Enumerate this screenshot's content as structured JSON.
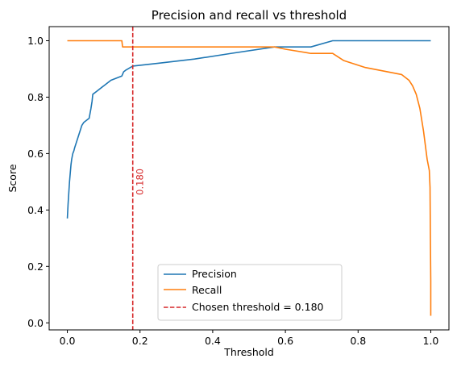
{
  "chart_data": {
    "type": "line",
    "title": "Precision and recall vs threshold",
    "xlabel": "Threshold",
    "ylabel": "Score",
    "xlim": [
      -0.05,
      1.05
    ],
    "ylim": [
      -0.025,
      1.05
    ],
    "xticks": [
      0.0,
      0.2,
      0.4,
      0.6,
      0.8,
      1.0
    ],
    "xtick_labels": [
      "0.0",
      "0.2",
      "0.4",
      "0.6",
      "0.8",
      "1.0"
    ],
    "yticks": [
      0.0,
      0.2,
      0.4,
      0.6,
      0.8,
      1.0
    ],
    "ytick_labels": [
      "0.0",
      "0.2",
      "0.4",
      "0.6",
      "0.8",
      "1.0"
    ],
    "grid": false,
    "legend_position": "bottom-center",
    "series": [
      {
        "name": "Precision",
        "color": "#1f77b4",
        "x": [
          0.0,
          0.002,
          0.004,
          0.006,
          0.008,
          0.01,
          0.012,
          0.015,
          0.018,
          0.02,
          0.025,
          0.03,
          0.035,
          0.04,
          0.045,
          0.05,
          0.06,
          0.065,
          0.068,
          0.07,
          0.08,
          0.1,
          0.12,
          0.14,
          0.15,
          0.155,
          0.16,
          0.18,
          0.25,
          0.35,
          0.45,
          0.57,
          0.6,
          0.67,
          0.73,
          0.8,
          0.9,
          1.0
        ],
        "y": [
          0.37,
          0.42,
          0.46,
          0.5,
          0.53,
          0.56,
          0.58,
          0.6,
          0.61,
          0.62,
          0.64,
          0.66,
          0.68,
          0.7,
          0.71,
          0.715,
          0.725,
          0.76,
          0.785,
          0.81,
          0.82,
          0.84,
          0.86,
          0.87,
          0.875,
          0.89,
          0.895,
          0.91,
          0.92,
          0.935,
          0.955,
          0.978,
          0.978,
          0.978,
          1.0,
          1.0,
          1.0,
          1.0
        ]
      },
      {
        "name": "Recall",
        "color": "#ff7f0e",
        "x": [
          0.0,
          0.05,
          0.1,
          0.15,
          0.152,
          0.16,
          0.2,
          0.3,
          0.4,
          0.5,
          0.57,
          0.6,
          0.67,
          0.73,
          0.76,
          0.82,
          0.88,
          0.92,
          0.94,
          0.95,
          0.96,
          0.97,
          0.975,
          0.98,
          0.985,
          0.99,
          0.993,
          0.996,
          0.998,
          0.999,
          1.0,
          1.0
        ],
        "y": [
          1.0,
          1.0,
          1.0,
          1.0,
          0.978,
          0.978,
          0.978,
          0.978,
          0.978,
          0.978,
          0.978,
          0.97,
          0.955,
          0.955,
          0.93,
          0.905,
          0.89,
          0.88,
          0.86,
          0.84,
          0.81,
          0.76,
          0.72,
          0.68,
          0.63,
          0.58,
          0.56,
          0.54,
          0.48,
          0.3,
          0.15,
          0.025
        ]
      }
    ],
    "threshold_line": {
      "name": "Chosen threshold = 0.180",
      "x": 0.18,
      "color": "#d62728",
      "style": "dashed",
      "annotation": "0.180"
    }
  }
}
